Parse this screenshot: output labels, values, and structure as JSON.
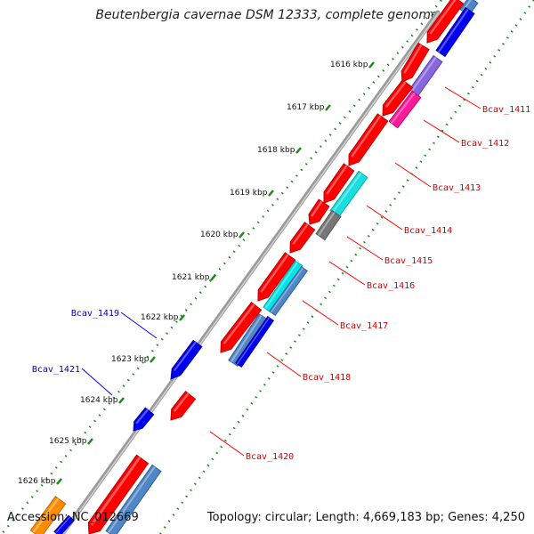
{
  "title": "Beutenbergia cavernae DSM 12333, complete genome",
  "footer": {
    "accession": "Accession: NC_012669",
    "summary": "Topology: circular; Length: 4,669,183 bp; Genes: 4,250"
  },
  "colors": {
    "forward_label": "#d40000",
    "reverse_label": "#0000cc",
    "callout_forward": "#ff0000",
    "callout_reverse": "#0000ff",
    "tick_dots": "#1a8a1a",
    "backbone": "#888888"
  },
  "ticks": [
    {
      "label": "1616 kbp"
    },
    {
      "label": "1617 kbp"
    },
    {
      "label": "1618 kbp"
    },
    {
      "label": "1619 kbp"
    },
    {
      "label": "1620 kbp"
    },
    {
      "label": "1621 kbp"
    },
    {
      "label": "1622 kbp"
    },
    {
      "label": "1623 kbp"
    },
    {
      "label": "1624 kbp"
    },
    {
      "label": "1625 kbp"
    },
    {
      "label": "1626 kbp"
    }
  ],
  "gene_labels": [
    {
      "name": "Bcav_1411",
      "strand": "forward"
    },
    {
      "name": "Bcav_1412",
      "strand": "forward"
    },
    {
      "name": "Bcav_1413",
      "strand": "forward"
    },
    {
      "name": "Bcav_1414",
      "strand": "forward"
    },
    {
      "name": "Bcav_1415",
      "strand": "forward"
    },
    {
      "name": "Bcav_1416",
      "strand": "forward"
    },
    {
      "name": "Bcav_1417",
      "strand": "forward"
    },
    {
      "name": "Bcav_1418",
      "strand": "forward"
    },
    {
      "name": "Bcav_1419",
      "strand": "reverse"
    },
    {
      "name": "Bcav_1420",
      "strand": "forward"
    },
    {
      "name": "Bcav_1421",
      "strand": "reverse"
    }
  ]
}
